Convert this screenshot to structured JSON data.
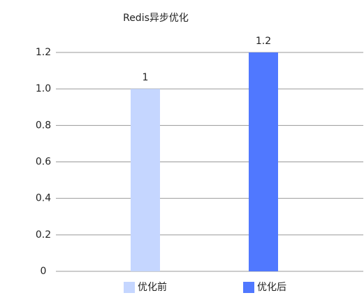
{
  "chart_data": {
    "type": "bar",
    "title": "Redis异步优化",
    "categories": [
      null
    ],
    "series": [
      {
        "name": "优化前",
        "color": "#c5d6ff",
        "values": [
          1
        ]
      },
      {
        "name": "优化后",
        "color": "#5078ff",
        "values": [
          1.2
        ]
      }
    ],
    "ylim": [
      0,
      1.2
    ],
    "yticks": [
      0,
      0.2,
      0.4,
      0.6,
      0.8,
      {
        "value": 1,
        "label": "1.0"
      },
      1.2
    ],
    "grid": true
  }
}
